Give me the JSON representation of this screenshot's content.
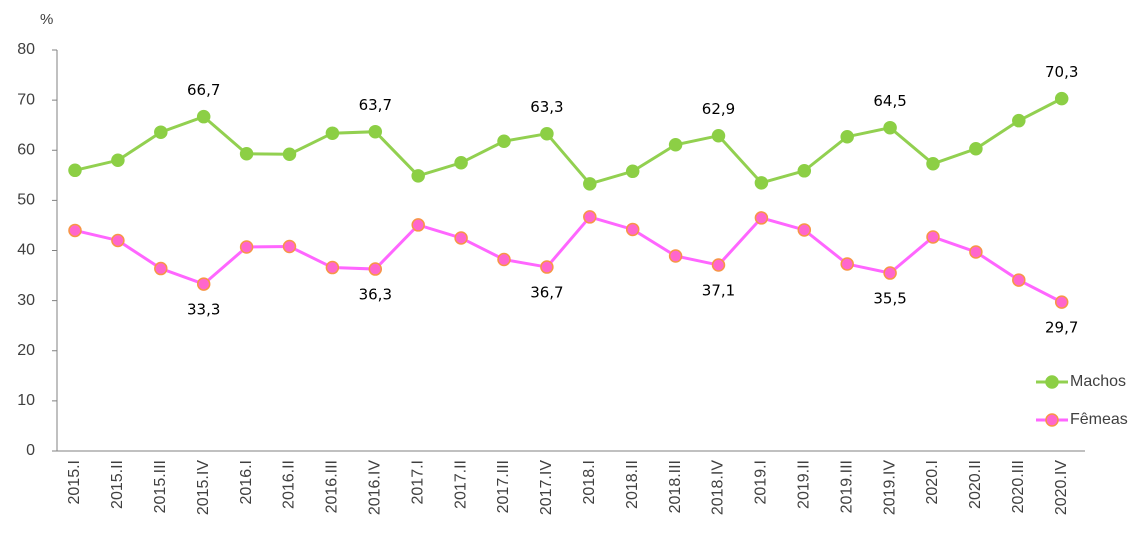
{
  "chart_data": {
    "type": "line",
    "y_label": "%",
    "categories": [
      "2015.I",
      "2015.II",
      "2015.III",
      "2015.IV",
      "2016.I",
      "2016.II",
      "2016.III",
      "2016.IV",
      "2017.I",
      "2017.II",
      "2017.III",
      "2017.IV",
      "2018.I",
      "2018.II",
      "2018.III",
      "2018.IV",
      "2019.I",
      "2019.II",
      "2019.III",
      "2019.IV",
      "2020.I",
      "2020.II",
      "2020.III",
      "2020.IV"
    ],
    "series": [
      {
        "name": "Machos",
        "color": "#92d050",
        "marker_color": "#8ccf45",
        "values": [
          56,
          58,
          63.6,
          66.7,
          59.3,
          59.2,
          63.4,
          63.7,
          54.9,
          57.5,
          61.8,
          63.3,
          53.3,
          55.8,
          61.1,
          62.9,
          53.5,
          55.9,
          62.7,
          64.5,
          57.3,
          60.3,
          65.9,
          70.3
        ],
        "value_labels": [
          null,
          null,
          null,
          "66,7",
          null,
          null,
          null,
          "63,7",
          null,
          null,
          null,
          "63,3",
          null,
          null,
          null,
          "62,9",
          null,
          null,
          null,
          "64,5",
          null,
          null,
          null,
          "70,3"
        ]
      },
      {
        "name": "Fêmeas",
        "color": "#ff66ff",
        "marker_color": "#ff66cc",
        "marker_edge": "#f79646",
        "values": [
          44,
          42,
          36.4,
          33.3,
          40.7,
          40.8,
          36.6,
          36.3,
          45.1,
          42.5,
          38.2,
          36.7,
          46.7,
          44.2,
          38.9,
          37.1,
          46.5,
          44.1,
          37.3,
          35.5,
          42.7,
          39.7,
          34.1,
          29.7
        ],
        "value_labels": [
          null,
          null,
          null,
          "33,3",
          null,
          null,
          null,
          "36,3",
          null,
          null,
          null,
          "36,7",
          null,
          null,
          null,
          "37,1",
          null,
          null,
          null,
          "35,5",
          null,
          null,
          null,
          "29,7"
        ]
      }
    ],
    "ylim": [
      0,
      80
    ],
    "yticks": [
      0,
      10,
      20,
      30,
      40,
      50,
      60,
      70,
      80
    ],
    "legend": "right"
  }
}
